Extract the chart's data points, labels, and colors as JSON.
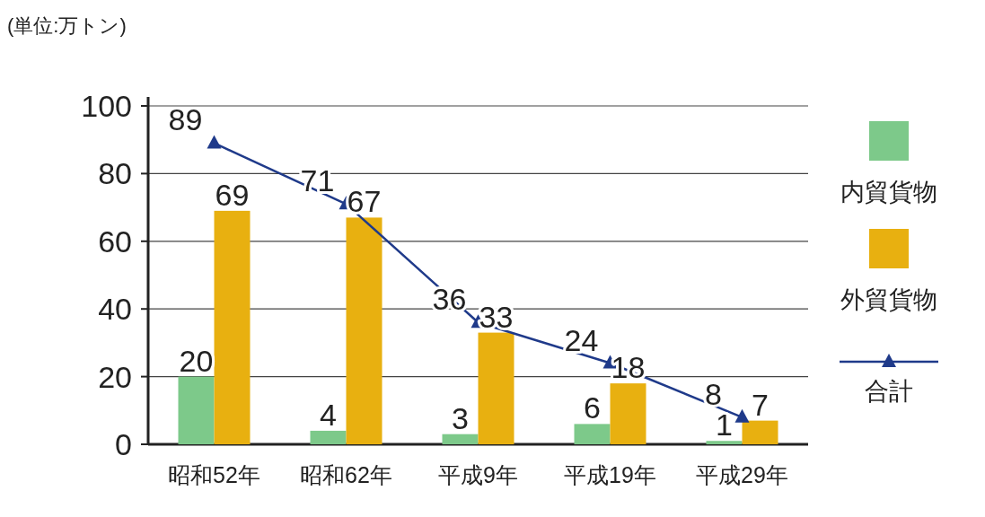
{
  "chart_data": {
    "type": "bar",
    "ylabel": "(単位:万トン)",
    "categories": [
      "昭和52年",
      "昭和62年",
      "平成9年",
      "平成19年",
      "平成29年"
    ],
    "series": [
      {
        "name": "内貿貨物",
        "color": "#7dc98a",
        "values": [
          20,
          4,
          3,
          6,
          1
        ]
      },
      {
        "name": "外貿貨物",
        "color": "#e8b010",
        "values": [
          69,
          67,
          33,
          18,
          7
        ]
      },
      {
        "name": "合計",
        "color": "#1f3a8a",
        "type": "line",
        "values": [
          89,
          71,
          36,
          24,
          8
        ]
      }
    ],
    "ylim": [
      0,
      100
    ],
    "yticks": [
      0,
      20,
      40,
      60,
      80,
      100
    ],
    "grid": "y",
    "legend": "right",
    "marker": "triangle",
    "data_labels": true
  }
}
